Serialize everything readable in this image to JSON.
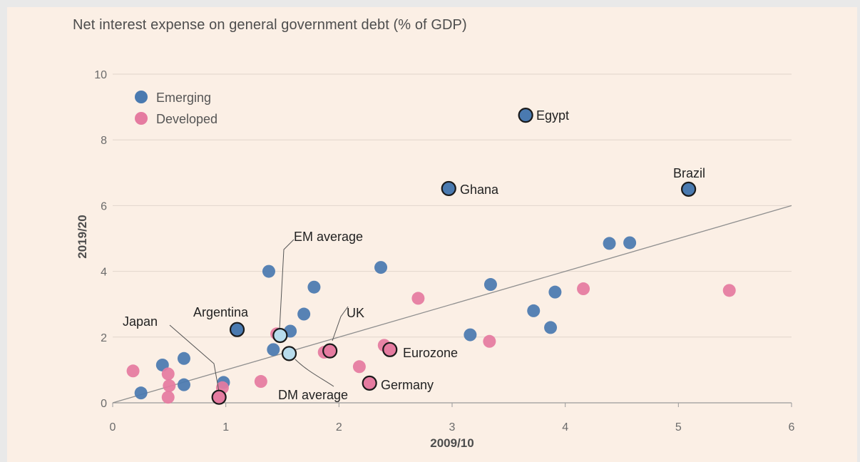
{
  "chart_data": {
    "type": "scatter",
    "title": "Net interest expense on general government debt (% of GDP)",
    "xlabel": "2009/10",
    "ylabel": "2019/20",
    "xlim": [
      0,
      6
    ],
    "ylim": [
      0,
      10
    ],
    "x_ticks": [
      "0",
      "1",
      "2",
      "3",
      "4",
      "5",
      "6"
    ],
    "y_ticks": [
      "0",
      "2",
      "4",
      "6",
      "8",
      "10"
    ],
    "grid": "horizontal",
    "legend_position": "top-left",
    "reference_line": {
      "from": [
        0,
        0
      ],
      "to": [
        6,
        6
      ]
    },
    "colors": {
      "Emerging": "#4a7ab0",
      "Developed": "#e57ba0",
      "EM average": "#b8dcec",
      "DM average": "#b8dcec"
    },
    "series": [
      {
        "name": "Emerging",
        "points": [
          [
            0.25,
            0.3
          ],
          [
            0.44,
            1.15
          ],
          [
            0.63,
            1.35
          ],
          [
            0.63,
            0.55
          ],
          [
            0.98,
            0.62
          ],
          [
            1.38,
            4.0
          ],
          [
            1.42,
            1.62
          ],
          [
            1.57,
            2.18
          ],
          [
            1.69,
            2.7
          ],
          [
            1.78,
            3.52
          ],
          [
            2.37,
            4.12
          ],
          [
            3.16,
            2.07
          ],
          [
            3.34,
            3.6
          ],
          [
            3.72,
            2.8
          ],
          [
            3.87,
            2.29
          ],
          [
            3.91,
            3.37
          ],
          [
            4.39,
            4.85
          ],
          [
            4.57,
            4.87
          ]
        ]
      },
      {
        "name": "Developed",
        "points": [
          [
            0.18,
            0.97
          ],
          [
            0.49,
            0.88
          ],
          [
            0.5,
            0.52
          ],
          [
            0.49,
            0.17
          ],
          [
            0.97,
            0.46
          ],
          [
            1.31,
            0.65
          ],
          [
            1.45,
            2.1
          ],
          [
            1.87,
            1.54
          ],
          [
            2.18,
            1.1
          ],
          [
            2.4,
            1.75
          ],
          [
            2.7,
            3.18
          ],
          [
            3.33,
            1.87
          ],
          [
            4.16,
            3.47
          ],
          [
            5.45,
            3.42
          ]
        ]
      }
    ],
    "highlighted": [
      {
        "label": "Egypt",
        "group": "Emerging",
        "x": 3.65,
        "y": 8.75
      },
      {
        "label": "Ghana",
        "group": "Emerging",
        "x": 2.97,
        "y": 6.52
      },
      {
        "label": "Brazil",
        "group": "Emerging",
        "x": 5.09,
        "y": 6.5
      },
      {
        "label": "Argentina",
        "group": "Emerging",
        "x": 1.1,
        "y": 2.23
      },
      {
        "label": "Eurozone",
        "group": "Developed",
        "x": 2.45,
        "y": 1.62
      },
      {
        "label": "UK",
        "group": "Developed",
        "x": 1.92,
        "y": 1.58
      },
      {
        "label": "Germany",
        "group": "Developed",
        "x": 2.27,
        "y": 0.6
      },
      {
        "label": "Japan",
        "group": "Developed",
        "x": 0.94,
        "y": 0.17
      },
      {
        "label": "EM average",
        "group": "EM average",
        "x": 1.48,
        "y": 2.05
      },
      {
        "label": "DM average",
        "group": "DM average",
        "x": 1.56,
        "y": 1.5
      }
    ]
  }
}
